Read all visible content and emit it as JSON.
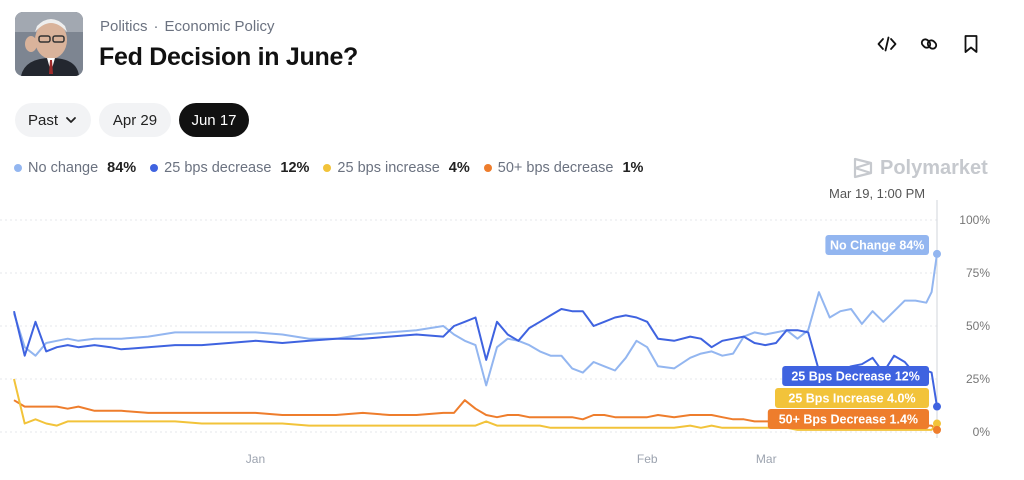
{
  "breadcrumb": {
    "category": "Politics",
    "separator": "·",
    "subcategory": "Economic Policy"
  },
  "market": {
    "title": "Fed Decision in June?"
  },
  "actions": {
    "embed_icon": "code-icon",
    "link_icon": "link-icon",
    "bookmark_icon": "bookmark-icon"
  },
  "filters": {
    "past_label": "Past",
    "apr_label": "Apr 29",
    "jun_label": "Jun 17",
    "active": "Jun 17"
  },
  "legend": [
    {
      "name": "No change",
      "value": "84%",
      "color": "#93b6f0"
    },
    {
      "name": "25 bps decrease",
      "value": "12%",
      "color": "#3f63e0"
    },
    {
      "name": "25 bps increase",
      "value": "4%",
      "color": "#f2c33a"
    },
    {
      "name": "50+ bps decrease",
      "value": "1%",
      "color": "#ee7d2c"
    }
  ],
  "brand": "Polymarket",
  "timestamp": "Mar 19, 1:00 PM",
  "chart_data": {
    "type": "line",
    "x_ticks": [
      "Jan",
      "Feb",
      "Mar"
    ],
    "y_ticks": [
      "0%",
      "25%",
      "50%",
      "75%",
      "100%"
    ],
    "ylim": [
      0,
      100
    ],
    "grid": true,
    "x": [
      0,
      2,
      4,
      6,
      8,
      10,
      12,
      15,
      18,
      20,
      25,
      30,
      35,
      40,
      45,
      50,
      55,
      60,
      65,
      70,
      75,
      80,
      82,
      84,
      86,
      88,
      90,
      92,
      94,
      96,
      98,
      100,
      102,
      104,
      106,
      108,
      110,
      112,
      114,
      116,
      118,
      120,
      123,
      126,
      128,
      130,
      132,
      134,
      136,
      138,
      140,
      142,
      144,
      146,
      148,
      150,
      152,
      154,
      156,
      158,
      160,
      162,
      164,
      166,
      168,
      170,
      171,
      172
    ],
    "series": [
      {
        "name": "No change",
        "color": "#93b6f0",
        "end_label": "No Change 84%",
        "values": [
          56,
          40,
          36,
          42,
          43,
          44,
          43,
          44,
          44,
          44,
          45,
          47,
          47,
          47,
          47,
          46,
          44,
          44,
          46,
          47,
          48,
          50,
          46,
          43,
          41,
          22,
          40,
          44,
          43,
          41,
          38,
          36,
          36,
          30,
          28,
          33,
          31,
          29,
          35,
          43,
          40,
          31,
          30,
          35,
          37,
          38,
          36,
          37,
          45,
          47,
          46,
          47,
          48,
          44,
          48,
          66,
          54,
          57,
          58,
          51,
          57,
          52,
          57,
          62,
          62,
          61,
          66,
          84
        ]
      },
      {
        "name": "25 bps decrease",
        "color": "#3f63e0",
        "end_label": "25 Bps Decrease 12%",
        "values": [
          57,
          36,
          52,
          38,
          40,
          41,
          40,
          41,
          40,
          39,
          40,
          41,
          41,
          42,
          43,
          42,
          43,
          44,
          44,
          45,
          46,
          45,
          50,
          52,
          54,
          34,
          52,
          46,
          43,
          49,
          52,
          55,
          58,
          57,
          57,
          50,
          52,
          54,
          55,
          54,
          52,
          44,
          43,
          45,
          44,
          40,
          43,
          44,
          45,
          42,
          41,
          42,
          48,
          48,
          47,
          29,
          30,
          29,
          31,
          32,
          35,
          28,
          36,
          33,
          27,
          29,
          28,
          12
        ]
      },
      {
        "name": "25 bps increase",
        "color": "#f2c33a",
        "end_label": "25 Bps Increase 4.0%",
        "values": [
          25,
          4,
          6,
          4,
          3,
          5,
          5,
          5,
          5,
          5,
          5,
          5,
          4,
          4,
          4,
          4,
          3,
          3,
          3,
          3,
          3,
          3,
          3,
          3,
          3,
          5,
          3,
          3,
          3,
          3,
          3,
          2,
          2,
          2,
          2,
          2,
          2,
          2,
          2,
          2,
          2,
          2,
          2,
          3,
          2,
          3,
          2,
          2,
          2,
          2,
          2,
          2,
          2,
          1,
          1,
          1,
          1,
          1,
          1,
          1,
          1,
          1,
          1,
          1,
          1,
          1,
          1,
          4
        ]
      },
      {
        "name": "50+ bps decrease",
        "color": "#ee7d2c",
        "end_label": "50+ Bps Decrease 1.4%",
        "values": [
          15,
          12,
          12,
          12,
          12,
          11,
          12,
          10,
          10,
          10,
          9,
          9,
          9,
          9,
          9,
          8,
          8,
          8,
          9,
          8,
          8,
          9,
          9,
          15,
          11,
          8,
          7,
          8,
          8,
          7,
          7,
          7,
          7,
          7,
          6,
          8,
          8,
          7,
          7,
          7,
          7,
          8,
          7,
          8,
          8,
          8,
          7,
          6,
          6,
          5,
          5,
          5,
          5,
          5,
          5,
          5,
          5,
          4,
          4,
          4,
          4,
          4,
          4,
          3,
          3,
          3,
          3,
          1
        ]
      }
    ]
  }
}
